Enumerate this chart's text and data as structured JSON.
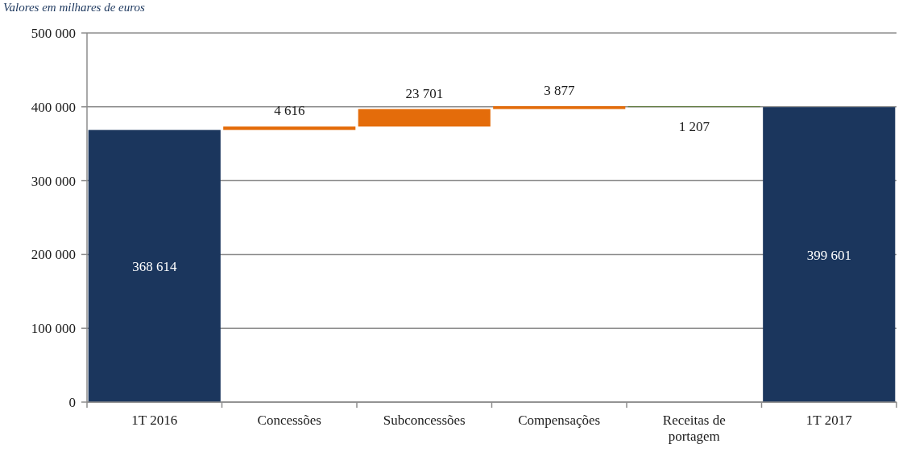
{
  "chart_data": {
    "type": "bar",
    "subtitle": "Valores em milhares de euros",
    "categories": [
      "1T 2016",
      "Concessões",
      "Subconcessões",
      "Compensações",
      "Receitas de portagem",
      "1T 2017"
    ],
    "values": [
      368614,
      4616,
      23701,
      3877,
      -1207,
      399601
    ],
    "base": [
      0,
      368614,
      373230,
      396931,
      400808,
      0
    ],
    "colors": [
      "#1b365d",
      "#e46c0a",
      "#e46c0a",
      "#e46c0a",
      "#5f7a3c",
      "#1b365d"
    ],
    "value_labels": [
      "368 614",
      "4 616",
      "23 701",
      "3 877",
      "1 207",
      "399 601"
    ],
    "ylim": [
      0,
      500000
    ],
    "yticks": [
      {
        "value": 0,
        "label": "0"
      },
      {
        "value": 100000,
        "label": "100 000"
      },
      {
        "value": 200000,
        "label": "200 000"
      },
      {
        "value": 300000,
        "label": "300 000"
      },
      {
        "value": 400000,
        "label": "400 000"
      },
      {
        "value": 500000,
        "label": "500 000"
      }
    ],
    "grid": "y"
  }
}
